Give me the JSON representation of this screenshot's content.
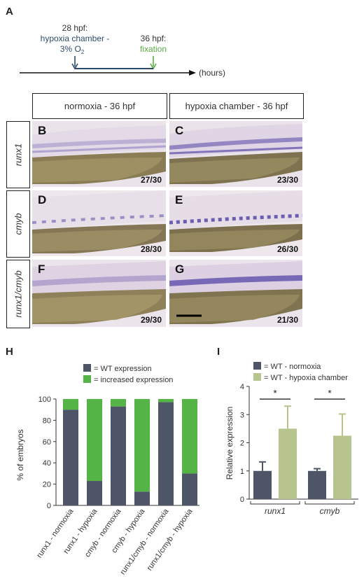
{
  "panel_A": {
    "letter": "A",
    "event1_time": "28 hpf:",
    "event1_line1": "hypoxia chamber -",
    "event1_line2": "3% O",
    "event1_sub": "2",
    "event2_time": "36 hpf:",
    "event2_label": "fixation",
    "axis_unit": "(hours)",
    "colors": {
      "hypoxia": "#2e4a6b",
      "fixation": "#5aaa46",
      "axis": "#111111"
    }
  },
  "panel_micro": {
    "col_headers": [
      "normoxia - 36 hpf",
      "hypoxia chamber - 36 hpf"
    ],
    "row_labels": [
      "runx1",
      "cmyb",
      "runx1/cmyb"
    ],
    "panels": [
      {
        "letter": "B",
        "ratio": "27/30"
      },
      {
        "letter": "C",
        "ratio": "23/30"
      },
      {
        "letter": "D",
        "ratio": "28/30"
      },
      {
        "letter": "E",
        "ratio": "26/30"
      },
      {
        "letter": "F",
        "ratio": "29/30"
      },
      {
        "letter": "G",
        "ratio": "21/30"
      }
    ]
  },
  "panel_H": {
    "letter": "H",
    "legend": [
      "= WT expression",
      "= increased expression"
    ],
    "ylabel": "% of embryos",
    "yticks": [
      "0",
      "20",
      "40",
      "60",
      "80",
      "100"
    ]
  },
  "panel_I": {
    "letter": "I",
    "legend": [
      "= WT - normoxia",
      "= WT - hypoxia chamber"
    ],
    "ylabel": "Relative expression",
    "yticks": [
      "0",
      "1",
      "2",
      "3",
      "4"
    ],
    "groups": [
      "runx1",
      "cmyb"
    ],
    "sig": "*"
  },
  "chart_data": [
    {
      "type": "bar",
      "stacked": true,
      "categories": [
        "runx1 - normoxia",
        "runx1 - hypoxia",
        "cmyb - normoxia",
        "cmyb - hypoxia",
        "runx1/cmyb - normoxia",
        "runx1/cmyb - hypoxia"
      ],
      "series": [
        {
          "name": "WT expression",
          "values": [
            90,
            23,
            93,
            13,
            97,
            30
          ],
          "color": "#4d5566"
        },
        {
          "name": "increased expression",
          "values": [
            10,
            77,
            7,
            87,
            3,
            70
          ],
          "color": "#55b446"
        }
      ],
      "ylabel": "% of embryos",
      "ylim": [
        0,
        100
      ]
    },
    {
      "type": "bar",
      "categories": [
        "runx1",
        "cmyb"
      ],
      "series": [
        {
          "name": "WT - normoxia",
          "values": [
            1.0,
            1.0
          ],
          "errors": [
            0.32,
            0.08
          ],
          "color": "#4d5566"
        },
        {
          "name": "WT - hypoxia chamber",
          "values": [
            2.5,
            2.25
          ],
          "errors": [
            0.8,
            0.77
          ],
          "color": "#b8c48e"
        }
      ],
      "ylabel": "Relative expression",
      "ylim": [
        0,
        4
      ]
    }
  ]
}
